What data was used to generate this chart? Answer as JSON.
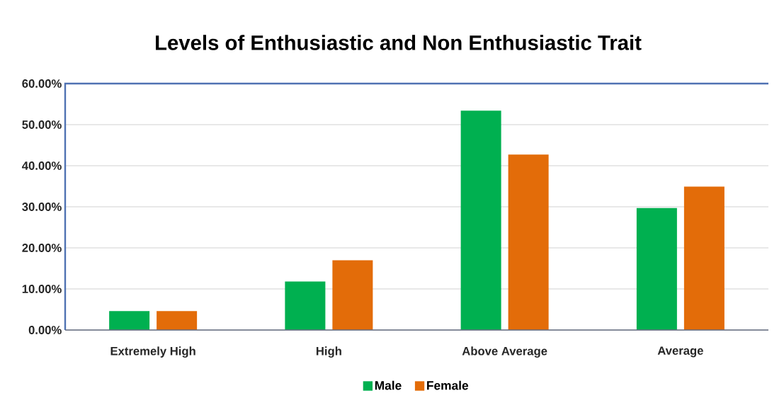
{
  "chart_data": {
    "type": "bar",
    "title": "Levels of Enthusiastic and Non Enthusiastic Trait",
    "categories": [
      "Extremely High",
      "High",
      "Above Average",
      "Average"
    ],
    "series": [
      {
        "name": "Male",
        "color": "#00b050",
        "values": [
          4.6,
          11.8,
          53.4,
          29.7
        ]
      },
      {
        "name": "Female",
        "color": "#e36c09",
        "values": [
          4.6,
          17.0,
          42.7,
          34.9
        ]
      }
    ],
    "ylim": [
      0,
      60
    ],
    "yticks": [
      {
        "value": 0,
        "label": "0.00%"
      },
      {
        "value": 10,
        "label": "10.00%"
      },
      {
        "value": 20,
        "label": "20.00%"
      },
      {
        "value": 30,
        "label": "30.00%"
      },
      {
        "value": 40,
        "label": "40.00%"
      },
      {
        "value": 50,
        "label": "50.00%"
      },
      {
        "value": 60,
        "label": "60.00%"
      }
    ],
    "grid": "y",
    "legend": "bottom"
  }
}
